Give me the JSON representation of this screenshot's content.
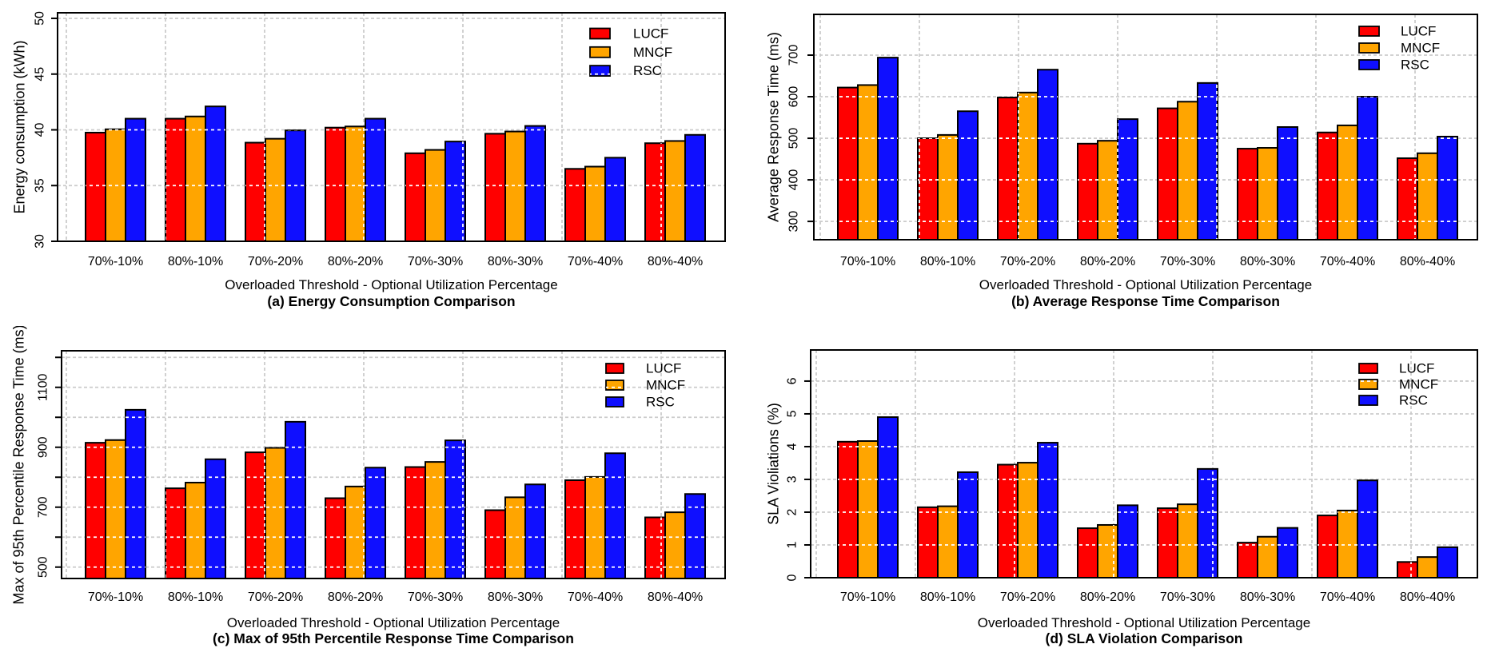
{
  "figure": {
    "background": "#ffffff",
    "axis_color": "#000000",
    "grid_color": "#cccccc",
    "grid_over_bars_color": "#ffffff",
    "legend_entries": [
      "LUCF",
      "MNCF",
      "RSC"
    ],
    "series_colors": {
      "LUCF": "#ff0000",
      "MNCF": "#ffa500",
      "RSC": "#0f0fff"
    }
  },
  "chart_data": [
    {
      "id": "a",
      "type": "bar",
      "caption": "(a) Energy Consumption Comparison",
      "xlabel": "Overloaded Threshold - Optional Utilization Percentage",
      "ylabel": "Energy consumption (kWh)",
      "categories": [
        "70%-10%",
        "80%-10%",
        "70%-20%",
        "80%-20%",
        "70%-30%",
        "80%-30%",
        "70%-40%",
        "80%-40%"
      ],
      "series": [
        {
          "name": "LUCF",
          "values": [
            39.75,
            41.0,
            38.85,
            40.2,
            37.9,
            39.65,
            36.5,
            38.8
          ]
        },
        {
          "name": "MNCF",
          "values": [
            40.05,
            41.2,
            39.2,
            40.3,
            38.2,
            39.85,
            36.7,
            39.0
          ]
        },
        {
          "name": "RSC",
          "values": [
            41.0,
            42.1,
            39.95,
            41.0,
            38.95,
            40.35,
            37.5,
            39.55
          ]
        }
      ],
      "ylim": [
        30,
        50.5
      ],
      "yticks": [
        30,
        35,
        40,
        45,
        50
      ],
      "minor_ticks": [],
      "grid_lines": [
        35,
        40,
        45,
        50
      ],
      "grid": "dotted",
      "legend_position": "top-right"
    },
    {
      "id": "b",
      "type": "bar",
      "caption": "(b) Average Response Time Comparison",
      "xlabel": "Overloaded Threshold - Optional Utilization Percentage",
      "ylabel": "Average Response Time (ms)",
      "categories": [
        "70%-10%",
        "80%-10%",
        "70%-20%",
        "80%-20%",
        "70%-30%",
        "80%-30%",
        "70%-40%",
        "80%-40%"
      ],
      "series": [
        {
          "name": "LUCF",
          "values": [
            622,
            500,
            598,
            487,
            572,
            475,
            514,
            452
          ]
        },
        {
          "name": "MNCF",
          "values": [
            628,
            508,
            610,
            494,
            588,
            477,
            531,
            464
          ]
        },
        {
          "name": "RSC",
          "values": [
            694,
            565,
            665,
            546,
            633,
            527,
            600,
            504
          ]
        }
      ],
      "ylim": [
        256,
        798
      ],
      "yticks": [
        300,
        400,
        500,
        600,
        700
      ],
      "minor_ticks": [],
      "grid_lines": [
        300,
        400,
        500,
        600,
        700
      ],
      "grid": "dotted",
      "legend_position": "top-right"
    },
    {
      "id": "c",
      "type": "bar",
      "caption": "(c) Max of 95th Percentile Response Time Comparison",
      "xlabel": "Overloaded Threshold - Optional Utilization Percentage",
      "ylabel": "Max of 95th Percentile Response Time (ms)",
      "categories": [
        "70%-10%",
        "80%-10%",
        "70%-20%",
        "80%-20%",
        "70%-30%",
        "80%-30%",
        "70%-40%",
        "80%-40%"
      ],
      "series": [
        {
          "name": "LUCF",
          "values": [
            915,
            763,
            883,
            730,
            834,
            690,
            790,
            666
          ]
        },
        {
          "name": "MNCF",
          "values": [
            924,
            782,
            898,
            769,
            851,
            733,
            801,
            683
          ]
        },
        {
          "name": "RSC",
          "values": [
            1025,
            860,
            985,
            832,
            923,
            776,
            880,
            744
          ]
        }
      ],
      "ylim": [
        462,
        1222
      ],
      "yticks": [
        500,
        700,
        900,
        1100
      ],
      "minor_ticks": [
        600,
        800,
        1000,
        1200
      ],
      "grid_lines": [
        500,
        600,
        700,
        800,
        900,
        1000,
        1100,
        1200
      ],
      "grid": "dotted",
      "legend_position": "top-right"
    },
    {
      "id": "d",
      "type": "bar",
      "caption": "(d) SLA Violation Comparison",
      "xlabel": "Overloaded Threshold - Optional Utilization Percentage",
      "ylabel": "SLA Violiations (%)",
      "categories": [
        "70%-10%",
        "80%-10%",
        "70%-20%",
        "80%-20%",
        "70%-30%",
        "80%-30%",
        "70%-40%",
        "80%-40%"
      ],
      "series": [
        {
          "name": "LUCF",
          "values": [
            4.15,
            2.15,
            3.45,
            1.51,
            2.12,
            1.07,
            1.9,
            0.48
          ]
        },
        {
          "name": "MNCF",
          "values": [
            4.17,
            2.18,
            3.51,
            1.61,
            2.24,
            1.25,
            2.05,
            0.63
          ]
        },
        {
          "name": "RSC",
          "values": [
            4.9,
            3.22,
            4.12,
            2.21,
            3.32,
            1.52,
            2.97,
            0.93
          ]
        }
      ],
      "ylim": [
        0,
        6.95
      ],
      "yticks": [
        0,
        1,
        2,
        3,
        4,
        5,
        6
      ],
      "minor_ticks": [],
      "grid_lines": [
        1,
        2,
        3,
        4,
        5,
        6
      ],
      "grid": "dotted",
      "legend_position": "top-right"
    }
  ]
}
